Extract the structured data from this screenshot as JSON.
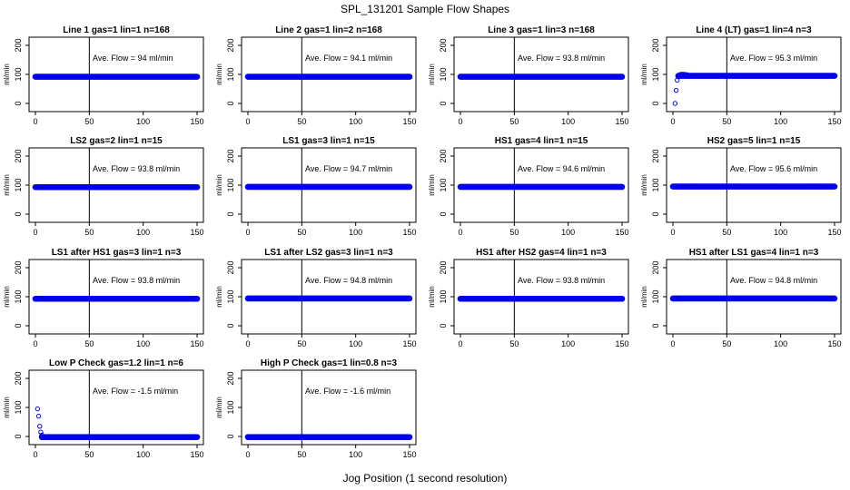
{
  "figure": {
    "title": "SPL_131201  Sample Flow Shapes",
    "xlabel": "Jog Position (1 second resolution)"
  },
  "style": {
    "point_color": "#0000ee",
    "axis_color": "#000000"
  },
  "chart_data": [
    {
      "type": "scatter",
      "title": "Line 1 gas=1 lin=1 n=168",
      "ylabel": "ml/min",
      "annotation": "Ave. Flow =  94  ml/min",
      "xlim": [
        0,
        150
      ],
      "ylim": [
        0,
        200
      ],
      "xticks": [
        0,
        50,
        100,
        150
      ],
      "yticks": [
        0,
        100,
        200
      ],
      "vline": 50,
      "series": [
        {
          "x_range": [
            0,
            150
          ],
          "y_const": 92
        }
      ]
    },
    {
      "type": "scatter",
      "title": "Line 2 gas=1 lin=2 n=168",
      "ylabel": "ml/min",
      "annotation": "Ave. Flow =  94.1  ml/min",
      "xlim": [
        0,
        150
      ],
      "ylim": [
        0,
        200
      ],
      "xticks": [
        0,
        50,
        100,
        150
      ],
      "yticks": [
        0,
        100,
        200
      ],
      "vline": 50,
      "series": [
        {
          "x_range": [
            0,
            150
          ],
          "y_const": 92
        }
      ]
    },
    {
      "type": "scatter",
      "title": "Line 3 gas=1 lin=3 n=168",
      "ylabel": "ml/min",
      "annotation": "Ave. Flow =  93.8  ml/min",
      "xlim": [
        0,
        150
      ],
      "ylim": [
        0,
        200
      ],
      "xticks": [
        0,
        50,
        100,
        150
      ],
      "yticks": [
        0,
        100,
        200
      ],
      "vline": 50,
      "series": [
        {
          "x_range": [
            0,
            150
          ],
          "y_const": 92
        }
      ]
    },
    {
      "type": "scatter",
      "title": "Line 4 (LT) gas=1 lin=4 n=3",
      "ylabel": "ml/min",
      "annotation": "Ave. Flow =  95.3  ml/min",
      "xlim": [
        0,
        150
      ],
      "ylim": [
        0,
        200
      ],
      "xticks": [
        0,
        50,
        100,
        150
      ],
      "yticks": [
        0,
        100,
        200
      ],
      "vline": 50,
      "series": [
        {
          "x_range": [
            5,
            150
          ],
          "y_const": 95,
          "points": [
            [
              2,
              0
            ],
            [
              3,
              45
            ],
            [
              4,
              80
            ],
            [
              5,
              92
            ],
            [
              6,
              97
            ],
            [
              7,
              100
            ],
            [
              9,
              101
            ],
            [
              11,
              100
            ],
            [
              13,
              99
            ]
          ]
        }
      ]
    },
    {
      "type": "scatter",
      "title": "LS2 gas=2 lin=1 n=15",
      "ylabel": "ml/min",
      "annotation": "Ave. Flow =  93.8  ml/min",
      "xlim": [
        0,
        150
      ],
      "ylim": [
        0,
        200
      ],
      "xticks": [
        0,
        50,
        100,
        150
      ],
      "yticks": [
        0,
        100,
        200
      ],
      "vline": 50,
      "series": [
        {
          "x_range": [
            0,
            150
          ],
          "y_const": 93
        }
      ]
    },
    {
      "type": "scatter",
      "title": "LS1 gas=3 lin=1 n=15",
      "ylabel": "ml/min",
      "annotation": "Ave. Flow =  94.7  ml/min",
      "xlim": [
        0,
        150
      ],
      "ylim": [
        0,
        200
      ],
      "xticks": [
        0,
        50,
        100,
        150
      ],
      "yticks": [
        0,
        100,
        200
      ],
      "vline": 50,
      "series": [
        {
          "x_range": [
            0,
            150
          ],
          "y_const": 94
        }
      ]
    },
    {
      "type": "scatter",
      "title": "HS1 gas=4 lin=1 n=15",
      "ylabel": "ml/min",
      "annotation": "Ave. Flow =  94.6  ml/min",
      "xlim": [
        0,
        150
      ],
      "ylim": [
        0,
        200
      ],
      "xticks": [
        0,
        50,
        100,
        150
      ],
      "yticks": [
        0,
        100,
        200
      ],
      "vline": 50,
      "series": [
        {
          "x_range": [
            0,
            150
          ],
          "y_const": 94
        }
      ]
    },
    {
      "type": "scatter",
      "title": "HS2 gas=5 lin=1 n=15",
      "ylabel": "ml/min",
      "annotation": "Ave. Flow =  95.6  ml/min",
      "xlim": [
        0,
        150
      ],
      "ylim": [
        0,
        200
      ],
      "xticks": [
        0,
        50,
        100,
        150
      ],
      "yticks": [
        0,
        100,
        200
      ],
      "vline": 50,
      "series": [
        {
          "x_range": [
            0,
            150
          ],
          "y_const": 95
        }
      ]
    },
    {
      "type": "scatter",
      "title": "LS1 after HS1 gas=3 lin=1 n=3",
      "ylabel": "ml/min",
      "annotation": "Ave. Flow =  93.8  ml/min",
      "xlim": [
        0,
        150
      ],
      "ylim": [
        0,
        200
      ],
      "xticks": [
        0,
        50,
        100,
        150
      ],
      "yticks": [
        0,
        100,
        200
      ],
      "vline": 50,
      "series": [
        {
          "x_range": [
            0,
            150
          ],
          "y_const": 93
        }
      ]
    },
    {
      "type": "scatter",
      "title": "LS1 after LS2 gas=3 lin=1 n=3",
      "ylabel": "ml/min",
      "annotation": "Ave. Flow =  94.8  ml/min",
      "xlim": [
        0,
        150
      ],
      "ylim": [
        0,
        200
      ],
      "xticks": [
        0,
        50,
        100,
        150
      ],
      "yticks": [
        0,
        100,
        200
      ],
      "vline": 50,
      "series": [
        {
          "x_range": [
            0,
            150
          ],
          "y_const": 94
        }
      ]
    },
    {
      "type": "scatter",
      "title": "HS1 after HS2 gas=4 lin=1 n=3",
      "ylabel": "ml/min",
      "annotation": "Ave. Flow =  93.8  ml/min",
      "xlim": [
        0,
        150
      ],
      "ylim": [
        0,
        200
      ],
      "xticks": [
        0,
        50,
        100,
        150
      ],
      "yticks": [
        0,
        100,
        200
      ],
      "vline": 50,
      "series": [
        {
          "x_range": [
            0,
            150
          ],
          "y_const": 93
        }
      ]
    },
    {
      "type": "scatter",
      "title": "HS1 after LS1 gas=4 lin=1 n=3",
      "ylabel": "ml/min",
      "annotation": "Ave. Flow =  94.8  ml/min",
      "xlim": [
        0,
        150
      ],
      "ylim": [
        0,
        200
      ],
      "xticks": [
        0,
        50,
        100,
        150
      ],
      "yticks": [
        0,
        100,
        200
      ],
      "vline": 50,
      "series": [
        {
          "x_range": [
            0,
            150
          ],
          "y_const": 94
        }
      ]
    },
    {
      "type": "scatter",
      "title": "Low P Check gas=1.2 lin=1 n=6",
      "ylabel": "ml/min",
      "annotation": "Ave. Flow =  -1.5  ml/min",
      "xlim": [
        0,
        150
      ],
      "ylim": [
        0,
        200
      ],
      "xticks": [
        0,
        50,
        100,
        150
      ],
      "yticks": [
        0,
        100,
        200
      ],
      "vline": 50,
      "series": [
        {
          "x_range": [
            6,
            150
          ],
          "y_const": -2,
          "points": [
            [
              2,
              95
            ],
            [
              3,
              70
            ],
            [
              4,
              35
            ],
            [
              5,
              15
            ],
            [
              6,
              5
            ]
          ]
        }
      ]
    },
    {
      "type": "scatter",
      "title": "High P Check gas=1 lin=0.8 n=3",
      "ylabel": "ml/min",
      "annotation": "Ave. Flow =  -1.6  ml/min",
      "xlim": [
        0,
        150
      ],
      "ylim": [
        0,
        200
      ],
      "xticks": [
        0,
        50,
        100,
        150
      ],
      "yticks": [
        0,
        100,
        200
      ],
      "vline": 50,
      "series": [
        {
          "x_range": [
            0,
            150
          ],
          "y_const": -2
        }
      ]
    }
  ]
}
